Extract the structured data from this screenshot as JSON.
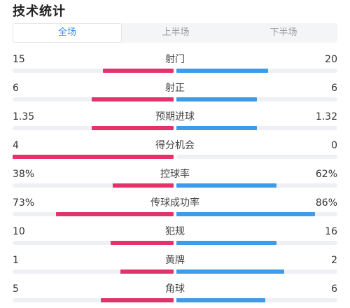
{
  "title": "技术统计",
  "tabs": [
    "全场",
    "上半场",
    "下半场"
  ],
  "active_tab": 0,
  "colors": {
    "home": "#e2336b",
    "away": "#3d9be8",
    "track": "#eef0f3",
    "active_tab_text": "#3a8fe4"
  },
  "stats": [
    {
      "label": "射门",
      "left": "15",
      "right": "20",
      "left_frac": 0.44,
      "right_frac": 0.57
    },
    {
      "label": "射正",
      "left": "6",
      "right": "6",
      "left_frac": 0.51,
      "right_frac": 0.5
    },
    {
      "label": "预期进球",
      "left": "1.35",
      "right": "1.32",
      "left_frac": 0.51,
      "right_frac": 0.5
    },
    {
      "label": "得分机会",
      "left": "4",
      "right": "0",
      "left_frac": 1.0,
      "right_frac": 0.0
    },
    {
      "label": "控球率",
      "left": "38%",
      "right": "62%",
      "left_frac": 0.38,
      "right_frac": 0.62
    },
    {
      "label": "传球成功率",
      "left": "73%",
      "right": "86%",
      "left_frac": 0.73,
      "right_frac": 0.86
    },
    {
      "label": "犯规",
      "left": "10",
      "right": "16",
      "left_frac": 0.39,
      "right_frac": 0.62
    },
    {
      "label": "黄牌",
      "left": "1",
      "right": "2",
      "left_frac": 0.33,
      "right_frac": 0.67
    },
    {
      "label": "角球",
      "left": "5",
      "right": "6",
      "left_frac": 0.45,
      "right_frac": 0.55
    }
  ]
}
